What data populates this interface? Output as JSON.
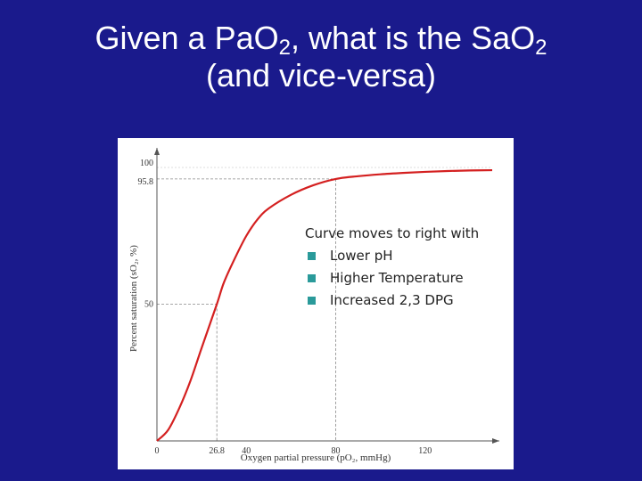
{
  "slide": {
    "title_line1_parts": [
      "Given a PaO",
      "2",
      ", what is the SaO",
      "2"
    ],
    "title_line2": "(and vice-versa)"
  },
  "note": {
    "heading": "Curve moves to right with",
    "items": [
      "Lower pH",
      "Higher Temperature",
      "Increased 2,3 DPG"
    ],
    "bullet_color": "#2a9a9a"
  },
  "chart_data": {
    "type": "line",
    "xlabel": "Oxygen partial pressure (pO₂, mmHg)",
    "ylabel": "Percent saturation (sO₂, %)",
    "xlim": [
      0,
      150
    ],
    "ylim": [
      0,
      100
    ],
    "x_ticks": [
      {
        "value": 0,
        "label": "0"
      },
      {
        "value": 26.8,
        "label": "26.8"
      },
      {
        "value": 40,
        "label": "40"
      },
      {
        "value": 80,
        "label": "80"
      },
      {
        "value": 120,
        "label": "120"
      }
    ],
    "y_ticks": [
      {
        "value": 50,
        "label": "50"
      },
      {
        "value": 95.8,
        "label": "95.8"
      },
      {
        "value": 100,
        "label": "100"
      }
    ],
    "reference_lines": [
      {
        "x": 26.8,
        "y": 50
      },
      {
        "x": 80,
        "y": 95.8
      }
    ],
    "curve_color": "#d42020",
    "series": [
      {
        "x": [
          0,
          5,
          10,
          15,
          20,
          26.8,
          30,
          35,
          40,
          45,
          50,
          60,
          70,
          80,
          90,
          100,
          110,
          120,
          130,
          140,
          150
        ],
        "y": [
          0,
          4,
          12,
          22,
          34,
          50,
          58,
          67,
          75,
          81,
          85,
          90,
          93.5,
          95.8,
          96.8,
          97.5,
          98,
          98.4,
          98.7,
          98.9,
          99
        ]
      }
    ]
  }
}
